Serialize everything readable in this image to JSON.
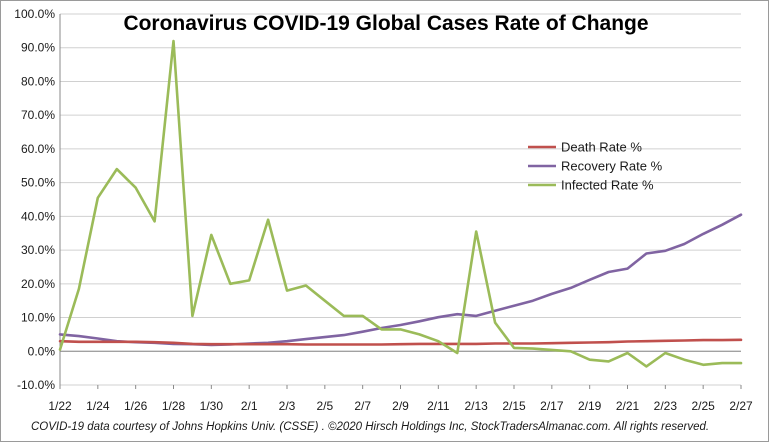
{
  "chart_data": {
    "type": "line",
    "title": "Coronavirus COVID-19 Global Cases Rate of Change",
    "ylim": [
      -10,
      100
    ],
    "ytick_values": [
      -10,
      0,
      10,
      20,
      30,
      40,
      50,
      60,
      70,
      80,
      90,
      100
    ],
    "ytick_labels": [
      "-10.0%",
      "0.0%",
      "10.0%",
      "20.0%",
      "30.0%",
      "40.0%",
      "50.0%",
      "60.0%",
      "70.0%",
      "80.0%",
      "90.0%",
      "100.0%"
    ],
    "categories": [
      "1/22",
      "1/23",
      "1/24",
      "1/25",
      "1/26",
      "1/27",
      "1/28",
      "1/29",
      "1/30",
      "1/31",
      "2/1",
      "2/2",
      "2/3",
      "2/4",
      "2/5",
      "2/6",
      "2/7",
      "2/8",
      "2/9",
      "2/10",
      "2/11",
      "2/12",
      "2/13",
      "2/14",
      "2/15",
      "2/16",
      "2/17",
      "2/18",
      "2/19",
      "2/20",
      "2/21",
      "2/22",
      "2/23",
      "2/24",
      "2/25",
      "2/26",
      "2/27"
    ],
    "xtick_labels": [
      "1/22",
      "1/24",
      "1/26",
      "1/28",
      "1/30",
      "2/1",
      "2/3",
      "2/5",
      "2/7",
      "2/9",
      "2/11",
      "2/13",
      "2/15",
      "2/17",
      "2/19",
      "2/21",
      "2/23",
      "2/25",
      "2/27"
    ],
    "legend_position": "right",
    "series": [
      {
        "name": "Death Rate %",
        "color": "#c0504d",
        "values": [
          3.0,
          2.8,
          2.8,
          2.8,
          2.8,
          2.7,
          2.5,
          2.2,
          2.1,
          2.1,
          2.1,
          2.1,
          2.1,
          2.0,
          2.0,
          2.0,
          2.0,
          2.0,
          2.1,
          2.2,
          2.2,
          2.2,
          2.2,
          2.3,
          2.3,
          2.3,
          2.4,
          2.5,
          2.6,
          2.7,
          2.9,
          3.0,
          3.1,
          3.2,
          3.3,
          3.3,
          3.4
        ]
      },
      {
        "name": "Recovery Rate %",
        "color": "#8064a2",
        "values": [
          5.0,
          4.5,
          3.8,
          3.0,
          2.7,
          2.5,
          2.2,
          2.1,
          1.9,
          2.0,
          2.3,
          2.5,
          3.0,
          3.6,
          4.2,
          4.8,
          5.8,
          6.9,
          7.8,
          8.9,
          10.1,
          11.0,
          10.5,
          12.0,
          13.5,
          15.0,
          17.0,
          18.8,
          21.2,
          23.5,
          24.5,
          29.0,
          29.8,
          31.8,
          34.8,
          37.5,
          40.5
        ]
      },
      {
        "name": "Infected Rate %",
        "color": "#9bbb59",
        "values": [
          0.5,
          18.5,
          45.5,
          54.0,
          48.5,
          38.5,
          92.0,
          10.5,
          34.5,
          20.0,
          21.0,
          39.0,
          18.0,
          19.5,
          15.0,
          10.5,
          10.5,
          6.5,
          6.5,
          5.0,
          3.0,
          -0.5,
          35.5,
          8.5,
          1.0,
          0.8,
          0.4,
          0.0,
          -2.5,
          -3.0,
          -0.5,
          -4.5,
          -0.5,
          -2.5,
          -4.0,
          -3.5,
          -3.5
        ]
      }
    ]
  },
  "caption": "COVID-19 data courtesy  of Johns Hopkins Univ. (CSSE) . ©2020 Hirsch  Holdings Inc, StockTradersAlmanac.com.  All rights reserved."
}
